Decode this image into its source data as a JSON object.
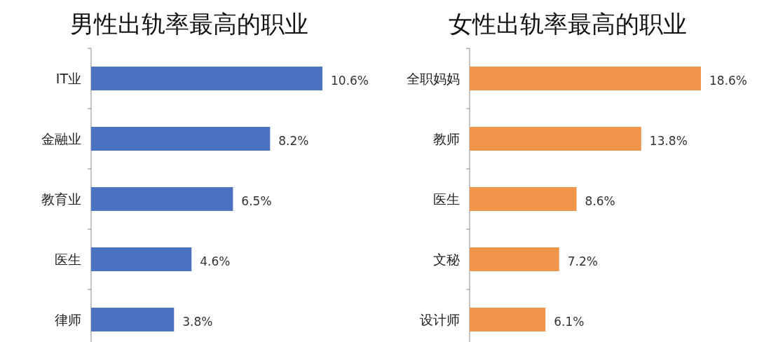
{
  "chart_data": [
    {
      "type": "bar",
      "orientation": "horizontal",
      "title": "男性出轨率最高的职业",
      "categories": [
        "IT业",
        "金融业",
        "教育业",
        "医生",
        "律师"
      ],
      "values": [
        10.6,
        8.2,
        6.5,
        4.6,
        3.8
      ],
      "value_labels": [
        "10.6%",
        "8.2%",
        "6.5%",
        "4.6%",
        "3.8%"
      ],
      "color": "#4a72c0"
    },
    {
      "type": "bar",
      "orientation": "horizontal",
      "title": "女性出轨率最高的职业",
      "categories": [
        "全职妈妈",
        "教师",
        "医生",
        "文秘",
        "设计师"
      ],
      "values": [
        18.6,
        13.8,
        8.6,
        7.2,
        6.1
      ],
      "value_labels": [
        "18.6%",
        "13.8%",
        "8.6%",
        "7.2%",
        "6.1%"
      ],
      "color": "#f0954a"
    }
  ]
}
